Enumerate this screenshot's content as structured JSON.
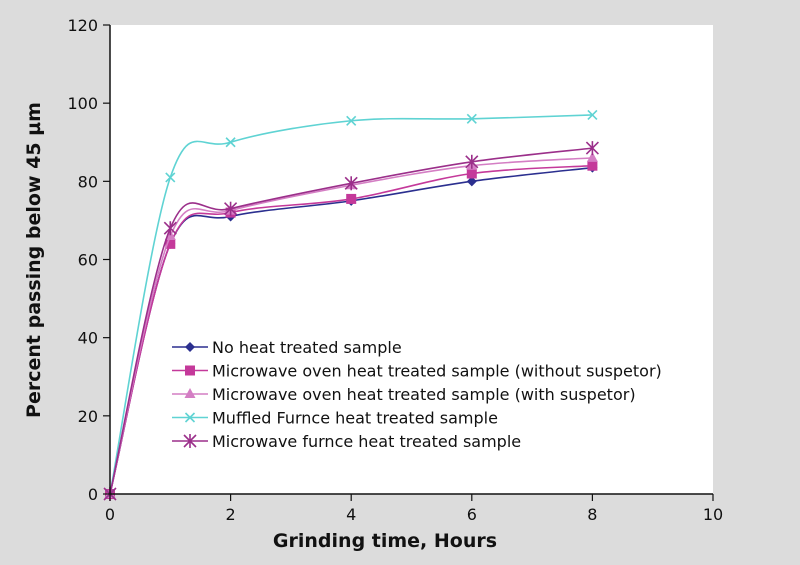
{
  "chart_data": {
    "type": "line",
    "title": "",
    "xlabel": "Grinding time, Hours",
    "ylabel": "Percent passing below 45 µm",
    "xlim": [
      0,
      10
    ],
    "ylim": [
      0,
      120
    ],
    "xticks": [
      0,
      2,
      4,
      6,
      8,
      10
    ],
    "yticks": [
      0,
      20,
      40,
      60,
      80,
      100,
      120
    ],
    "grid": false,
    "legend_position": "lower-center",
    "x": [
      0,
      1,
      2,
      4,
      6,
      8
    ],
    "series": [
      {
        "name": "No heat treated sample",
        "values": [
          0,
          64,
          71,
          75,
          80,
          83.5
        ],
        "color": "#2b2f8f",
        "marker": "diamond"
      },
      {
        "name": "Microwave oven heat treated sample (without suspetor)",
        "values": [
          0,
          64,
          72,
          75.5,
          82,
          84
        ],
        "color": "#c4399a",
        "marker": "square"
      },
      {
        "name": "Microwave oven heat treated sample (with suspetor)",
        "values": [
          0,
          66,
          72.5,
          79,
          84,
          86
        ],
        "color": "#d47ec4",
        "marker": "triangle"
      },
      {
        "name": "Muffled Furnce heat treated sample",
        "values": [
          0,
          81,
          90,
          95.5,
          96,
          97
        ],
        "color": "#5fd3d3",
        "marker": "x"
      },
      {
        "name": "Microwave furnce heat treated sample",
        "values": [
          0,
          68,
          73,
          79.5,
          85,
          88.5
        ],
        "color": "#9b2f8a",
        "marker": "asterisk"
      }
    ]
  }
}
